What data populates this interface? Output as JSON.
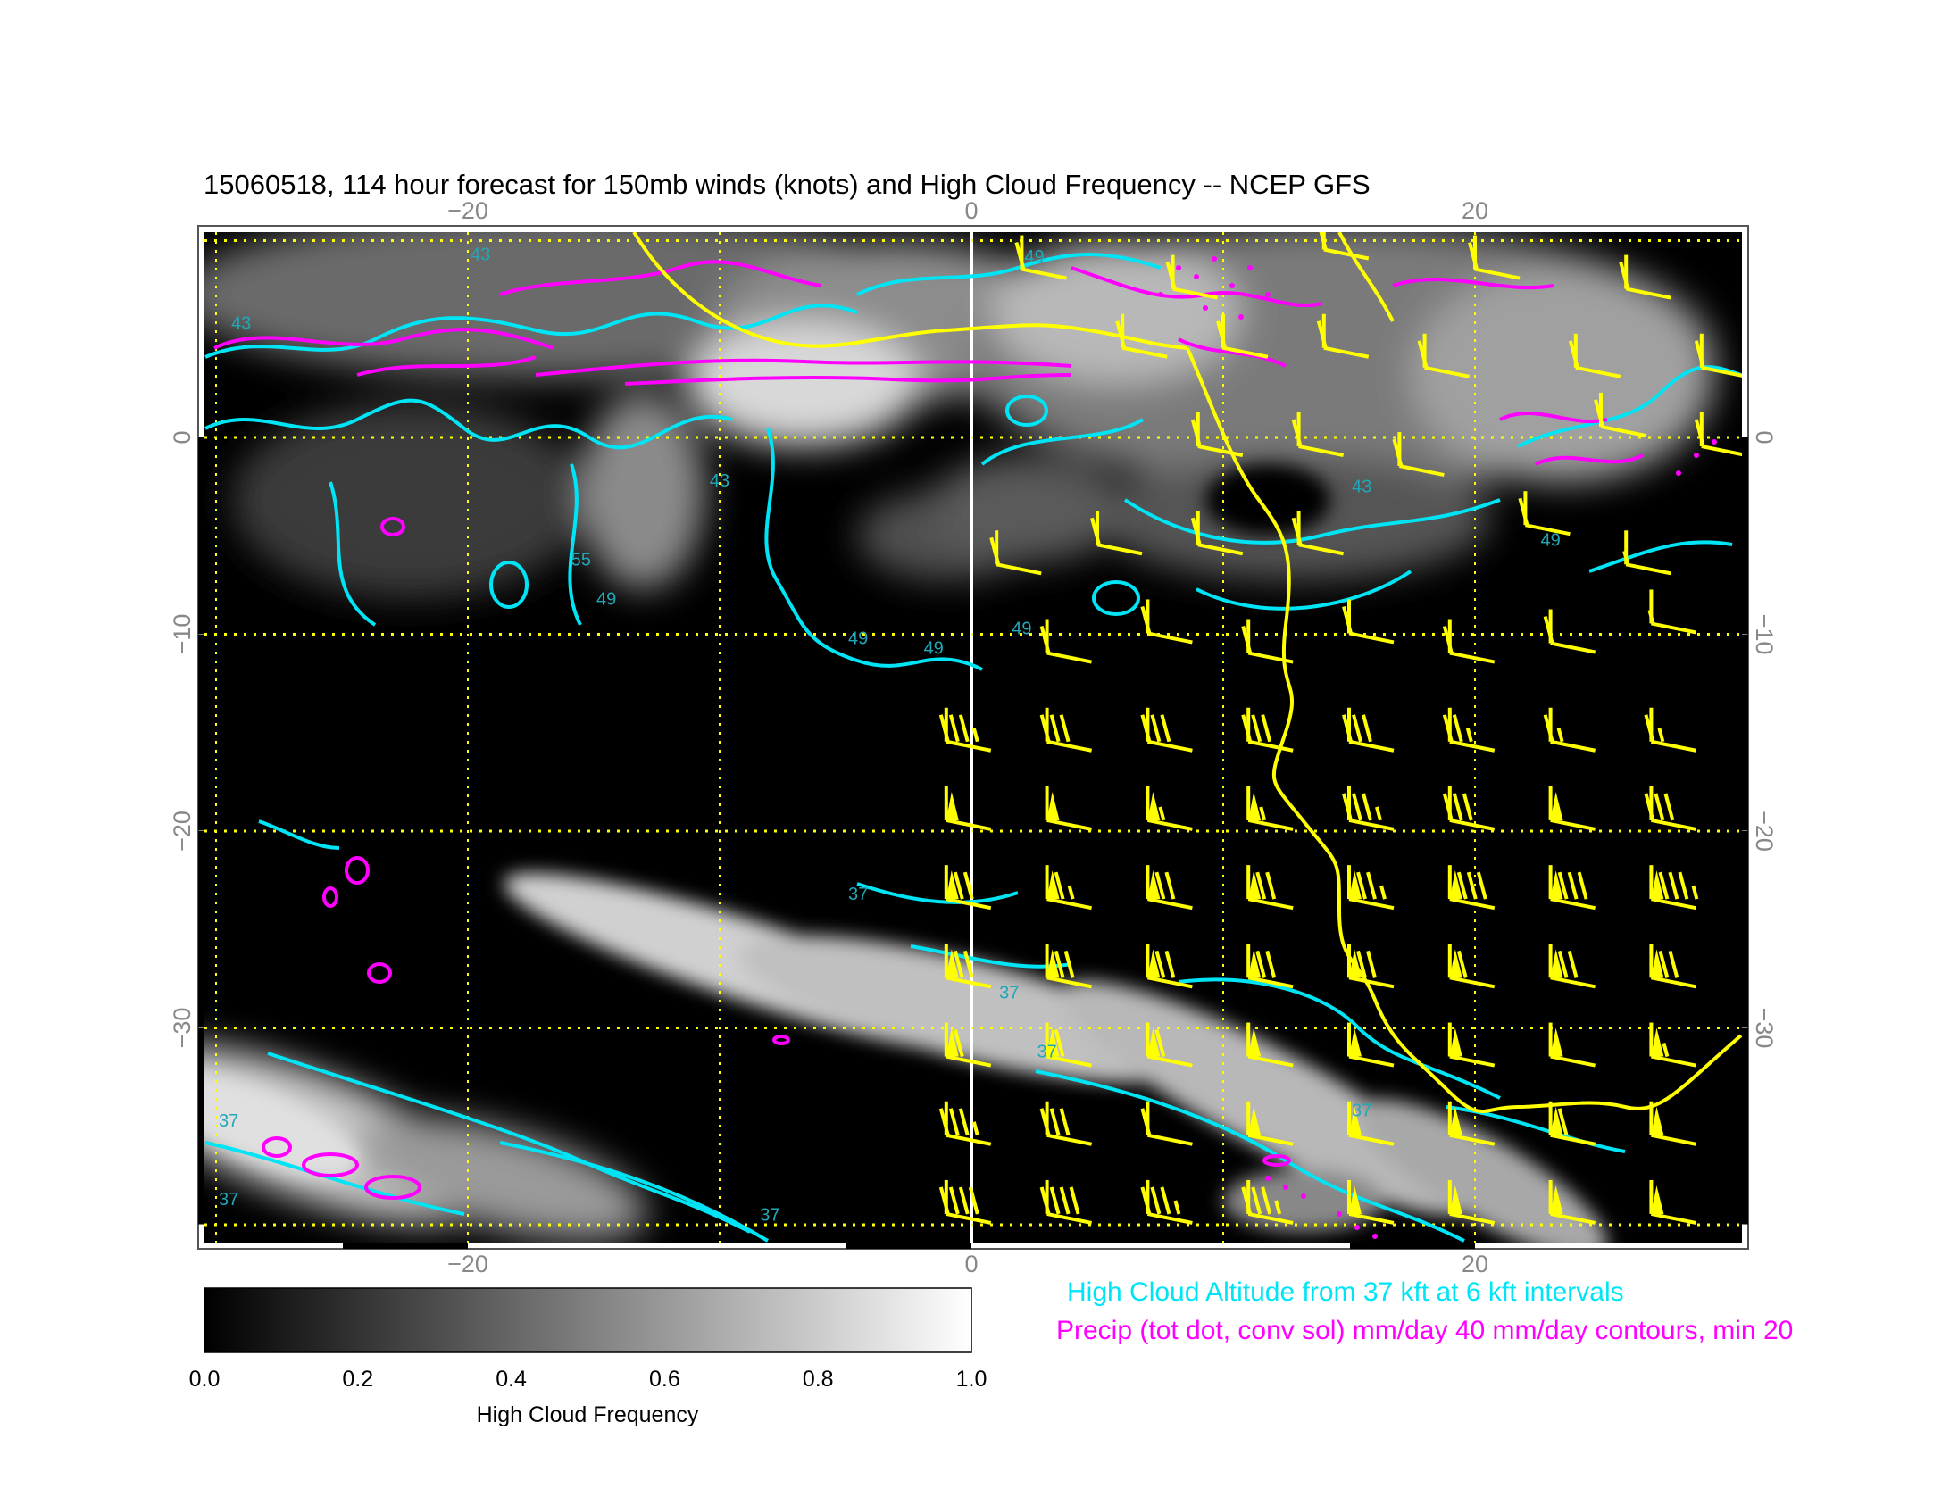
{
  "title": "15060518, 114 hour forecast for 150mb winds (knots) and High Cloud Frequency -- NCEP GFS",
  "map": {
    "lon_range": [
      -31,
      31
    ],
    "lat_range": [
      -40,
      11
    ],
    "lon_ticks": [
      {
        "value": -20,
        "label": "−20"
      },
      {
        "value": 0,
        "label": "0"
      },
      {
        "value": 20,
        "label": "20"
      }
    ],
    "lat_ticks": [
      {
        "value": 0,
        "label": "0"
      },
      {
        "value": -10,
        "label": "−10"
      },
      {
        "value": -20,
        "label": "−20"
      },
      {
        "value": -30,
        "label": "−30"
      }
    ],
    "gridline_lons": [
      -30,
      -20,
      -10,
      0,
      10,
      20
    ],
    "gridline_lats": [
      10,
      0,
      -10,
      -20,
      -30,
      -40
    ],
    "background_color": "#000000",
    "grid_color": "#ffff00",
    "meridian_color": "#ffffff",
    "barb_color": "#ffff00",
    "altitude_contour_color": "#00e5f5",
    "precip_contour_color": "#ff00ff",
    "coast_color": "#ffff00"
  },
  "altitude_labels": [
    {
      "text": "49",
      "lon": 2.5,
      "lat": 8.9
    },
    {
      "text": "43",
      "lon": -19.5,
      "lat": 9.0
    },
    {
      "text": "43",
      "lon": -29.0,
      "lat": 5.5
    },
    {
      "text": "43",
      "lon": -10.0,
      "lat": -2.5
    },
    {
      "text": "55",
      "lon": -15.5,
      "lat": -6.5
    },
    {
      "text": "49",
      "lon": -14.5,
      "lat": -8.5
    },
    {
      "text": "49",
      "lon": -4.5,
      "lat": -10.5
    },
    {
      "text": "49",
      "lon": -1.5,
      "lat": -11.0
    },
    {
      "text": "49",
      "lon": 2.0,
      "lat": -10.0
    },
    {
      "text": "43",
      "lon": 15.5,
      "lat": -2.8
    },
    {
      "text": "49",
      "lon": 23.0,
      "lat": -5.5
    },
    {
      "text": "37",
      "lon": -4.5,
      "lat": -23.5
    },
    {
      "text": "37",
      "lon": 1.5,
      "lat": -28.5
    },
    {
      "text": "37",
      "lon": 3.0,
      "lat": -31.5
    },
    {
      "text": "37",
      "lon": 15.5,
      "lat": -34.5
    },
    {
      "text": "37",
      "lon": -29.5,
      "lat": -35.0
    },
    {
      "text": "37",
      "lon": -29.5,
      "lat": -39.0
    },
    {
      "text": "37",
      "lon": -8.0,
      "lat": -39.8
    }
  ],
  "wind_barbs": [
    {
      "lon": -1,
      "lat": -15,
      "pennants": 0,
      "full": 3,
      "half": 1
    },
    {
      "lon": 3,
      "lat": -15,
      "pennants": 0,
      "full": 3,
      "half": 0
    },
    {
      "lon": 7,
      "lat": -15,
      "pennants": 0,
      "full": 3,
      "half": 0
    },
    {
      "lon": 11,
      "lat": -15,
      "pennants": 0,
      "full": 3,
      "half": 0
    },
    {
      "lon": 15,
      "lat": -15,
      "pennants": 0,
      "full": 3,
      "half": 0
    },
    {
      "lon": 19,
      "lat": -15,
      "pennants": 0,
      "full": 2,
      "half": 1
    },
    {
      "lon": 23,
      "lat": -15,
      "pennants": 0,
      "full": 1,
      "half": 1
    },
    {
      "lon": 27,
      "lat": -15,
      "pennants": 0,
      "full": 1,
      "half": 1
    },
    {
      "lon": -1,
      "lat": -19,
      "pennants": 1,
      "full": 0,
      "half": 0
    },
    {
      "lon": 3,
      "lat": -19,
      "pennants": 1,
      "full": 0,
      "half": 0
    },
    {
      "lon": 7,
      "lat": -19,
      "pennants": 1,
      "full": 0,
      "half": 1
    },
    {
      "lon": 11,
      "lat": -19,
      "pennants": 1,
      "full": 0,
      "half": 1
    },
    {
      "lon": 15,
      "lat": -19,
      "pennants": 0,
      "full": 3,
      "half": 1
    },
    {
      "lon": 19,
      "lat": -19,
      "pennants": 0,
      "full": 3,
      "half": 0
    },
    {
      "lon": 23,
      "lat": -19,
      "pennants": 1,
      "full": 0,
      "half": 0
    },
    {
      "lon": 27,
      "lat": -19,
      "pennants": 0,
      "full": 3,
      "half": 0
    },
    {
      "lon": -1,
      "lat": -23,
      "pennants": 1,
      "full": 2,
      "half": 0
    },
    {
      "lon": 3,
      "lat": -23,
      "pennants": 1,
      "full": 1,
      "half": 1
    },
    {
      "lon": 7,
      "lat": -23,
      "pennants": 1,
      "full": 2,
      "half": 0
    },
    {
      "lon": 11,
      "lat": -23,
      "pennants": 1,
      "full": 2,
      "half": 0
    },
    {
      "lon": 15,
      "lat": -23,
      "pennants": 1,
      "full": 2,
      "half": 1
    },
    {
      "lon": 19,
      "lat": -23,
      "pennants": 1,
      "full": 3,
      "half": 0
    },
    {
      "lon": 23,
      "lat": -23,
      "pennants": 1,
      "full": 3,
      "half": 0
    },
    {
      "lon": 27,
      "lat": -23,
      "pennants": 1,
      "full": 3,
      "half": 1
    },
    {
      "lon": -1,
      "lat": -27,
      "pennants": 1,
      "full": 2,
      "half": 0
    },
    {
      "lon": 3,
      "lat": -27,
      "pennants": 1,
      "full": 2,
      "half": 0
    },
    {
      "lon": 7,
      "lat": -27,
      "pennants": 1,
      "full": 2,
      "half": 0
    },
    {
      "lon": 11,
      "lat": -27,
      "pennants": 1,
      "full": 2,
      "half": 0
    },
    {
      "lon": 15,
      "lat": -27,
      "pennants": 1,
      "full": 2,
      "half": 0
    },
    {
      "lon": 19,
      "lat": -27,
      "pennants": 1,
      "full": 1,
      "half": 0
    },
    {
      "lon": 23,
      "lat": -27,
      "pennants": 1,
      "full": 2,
      "half": 0
    },
    {
      "lon": 27,
      "lat": -27,
      "pennants": 1,
      "full": 2,
      "half": 0
    },
    {
      "lon": -1,
      "lat": -31,
      "pennants": 1,
      "full": 1,
      "half": 0
    },
    {
      "lon": 3,
      "lat": -31,
      "pennants": 1,
      "full": 1,
      "half": 0
    },
    {
      "lon": 7,
      "lat": -31,
      "pennants": 1,
      "full": 1,
      "half": 0
    },
    {
      "lon": 11,
      "lat": -31,
      "pennants": 1,
      "full": 0,
      "half": 0
    },
    {
      "lon": 15,
      "lat": -31,
      "pennants": 1,
      "full": 0,
      "half": 0
    },
    {
      "lon": 19,
      "lat": -31,
      "pennants": 1,
      "full": 0,
      "half": 0
    },
    {
      "lon": 23,
      "lat": -31,
      "pennants": 1,
      "full": 0,
      "half": 0
    },
    {
      "lon": 27,
      "lat": -31,
      "pennants": 1,
      "full": 0,
      "half": 1
    },
    {
      "lon": -1,
      "lat": -35,
      "pennants": 0,
      "full": 3,
      "half": 1
    },
    {
      "lon": 3,
      "lat": -35,
      "pennants": 0,
      "full": 3,
      "half": 0
    },
    {
      "lon": 7,
      "lat": -35,
      "pennants": 0,
      "full": 1,
      "half": 0
    },
    {
      "lon": 11,
      "lat": -35,
      "pennants": 1,
      "full": 0,
      "half": 0
    },
    {
      "lon": 15,
      "lat": -35,
      "pennants": 1,
      "full": 0,
      "half": 0
    },
    {
      "lon": 19,
      "lat": -35,
      "pennants": 1,
      "full": 0,
      "half": 0
    },
    {
      "lon": 23,
      "lat": -35,
      "pennants": 1,
      "full": 1,
      "half": 0
    },
    {
      "lon": 27,
      "lat": -35,
      "pennants": 1,
      "full": 0,
      "half": 0
    },
    {
      "lon": -1,
      "lat": -39,
      "pennants": 0,
      "full": 4,
      "half": 0
    },
    {
      "lon": 3,
      "lat": -39,
      "pennants": 0,
      "full": 4,
      "half": 0
    },
    {
      "lon": 7,
      "lat": -39,
      "pennants": 0,
      "full": 3,
      "half": 1
    },
    {
      "lon": 11,
      "lat": -39,
      "pennants": 0,
      "full": 3,
      "half": 1
    },
    {
      "lon": 15,
      "lat": -39,
      "pennants": 1,
      "full": 0,
      "half": 0
    },
    {
      "lon": 19,
      "lat": -39,
      "pennants": 1,
      "full": 0,
      "half": 0
    },
    {
      "lon": 23,
      "lat": -39,
      "pennants": 1,
      "full": 0,
      "half": 0
    },
    {
      "lon": 27,
      "lat": -39,
      "pennants": 1,
      "full": 0,
      "half": 0
    },
    {
      "lon": 3,
      "lat": -10.5,
      "pennants": 0,
      "full": 1,
      "half": 0
    },
    {
      "lon": 7,
      "lat": -9.5,
      "pennants": 0,
      "full": 1,
      "half": 0
    },
    {
      "lon": 11,
      "lat": -10.5,
      "pennants": 0,
      "full": 1,
      "half": 0
    },
    {
      "lon": 15,
      "lat": -9.5,
      "pennants": 0,
      "full": 1,
      "half": 0
    },
    {
      "lon": 19,
      "lat": -10.5,
      "pennants": 0,
      "full": 1,
      "half": 0
    },
    {
      "lon": 23,
      "lat": -10,
      "pennants": 0,
      "full": 1,
      "half": 0
    },
    {
      "lon": 27,
      "lat": -9,
      "pennants": 0,
      "full": 0,
      "half": 1
    },
    {
      "lon": 1,
      "lat": -6,
      "pennants": 0,
      "full": 1,
      "half": 0
    },
    {
      "lon": 5,
      "lat": -5,
      "pennants": 0,
      "full": 1,
      "half": 0
    },
    {
      "lon": 9,
      "lat": -5,
      "pennants": 0,
      "full": 1,
      "half": 0
    },
    {
      "lon": 13,
      "lat": -5,
      "pennants": 0,
      "full": 1,
      "half": 0
    },
    {
      "lon": 22,
      "lat": -4,
      "pennants": 0,
      "full": 1,
      "half": 0
    },
    {
      "lon": 26,
      "lat": -6,
      "pennants": 0,
      "full": 0,
      "half": 1
    },
    {
      "lon": 9,
      "lat": 0,
      "pennants": 0,
      "full": 1,
      "half": 0
    },
    {
      "lon": 13,
      "lat": 0,
      "pennants": 0,
      "full": 1,
      "half": 0
    },
    {
      "lon": 17,
      "lat": -1,
      "pennants": 0,
      "full": 1,
      "half": 0
    },
    {
      "lon": 25,
      "lat": 1,
      "pennants": 0,
      "full": 1,
      "half": 0
    },
    {
      "lon": 29,
      "lat": 0,
      "pennants": 0,
      "full": 1,
      "half": 0
    },
    {
      "lon": 6,
      "lat": 5,
      "pennants": 0,
      "full": 1,
      "half": 0
    },
    {
      "lon": 10,
      "lat": 5,
      "pennants": 0,
      "full": 1,
      "half": 0
    },
    {
      "lon": 14,
      "lat": 5,
      "pennants": 0,
      "full": 1,
      "half": 0
    },
    {
      "lon": 18,
      "lat": 4,
      "pennants": 0,
      "full": 1,
      "half": 0
    },
    {
      "lon": 24,
      "lat": 4,
      "pennants": 0,
      "full": 1,
      "half": 0
    },
    {
      "lon": 29,
      "lat": 4,
      "pennants": 0,
      "full": 1,
      "half": 0
    },
    {
      "lon": 2,
      "lat": 9,
      "pennants": 0,
      "full": 1,
      "half": 0
    },
    {
      "lon": 8,
      "lat": 8,
      "pennants": 0,
      "full": 1,
      "half": 0
    },
    {
      "lon": 14,
      "lat": 10,
      "pennants": 0,
      "full": 1,
      "half": 0
    },
    {
      "lon": 20,
      "lat": 9,
      "pennants": 0,
      "full": 1,
      "half": 0
    },
    {
      "lon": 26,
      "lat": 8,
      "pennants": 0,
      "full": 1,
      "half": 0
    }
  ],
  "colorbar": {
    "label": "High Cloud Frequency",
    "ticks": [
      {
        "value": 0.0,
        "label": "0.0"
      },
      {
        "value": 0.2,
        "label": "0.2"
      },
      {
        "value": 0.4,
        "label": "0.4"
      },
      {
        "value": 0.6,
        "label": "0.6"
      },
      {
        "value": 0.8,
        "label": "0.8"
      },
      {
        "value": 1.0,
        "label": "1.0"
      }
    ]
  },
  "legend": {
    "altitude": "High Cloud Altitude from 37 kft at 6 kft intervals",
    "precip": "Precip (tot dot, conv sol) mm/day 40 mm/day contours, min 20"
  }
}
